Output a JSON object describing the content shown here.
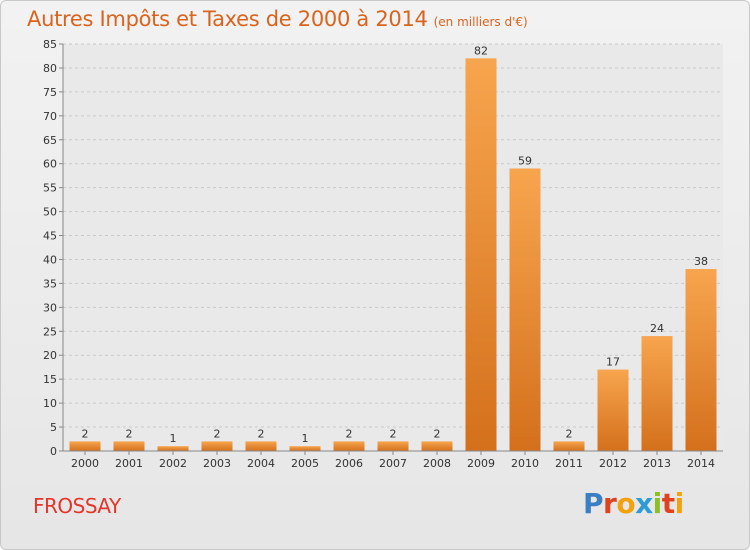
{
  "chart_data": {
    "type": "bar",
    "title": "Autres Impôts et Taxes de 2000 à 2014",
    "subtitle": "(en milliers d'€)",
    "categories": [
      "2000",
      "2001",
      "2002",
      "2003",
      "2004",
      "2005",
      "2006",
      "2007",
      "2008",
      "2009",
      "2010",
      "2011",
      "2012",
      "2013",
      "2014"
    ],
    "values": [
      2,
      2,
      1,
      2,
      2,
      1,
      2,
      2,
      2,
      82,
      59,
      2,
      17,
      24,
      38
    ],
    "ylim": [
      0,
      85
    ],
    "yticks": [
      0,
      5,
      10,
      15,
      20,
      25,
      30,
      35,
      40,
      45,
      50,
      55,
      60,
      65,
      70,
      75,
      80,
      85
    ],
    "grid": true,
    "legend": "none",
    "colors": {
      "bar_light": "#f7a54e",
      "bar_dark": "#d4701c",
      "text_accent": "#d9641e"
    }
  },
  "commune": "FROSSAY",
  "logo": {
    "letters": [
      {
        "char": "P",
        "color": "#3a7fc4"
      },
      {
        "char": "r",
        "color": "#e0421f"
      },
      {
        "char": "o",
        "color": "#f2a20c"
      },
      {
        "char": "x",
        "color": "#2d9bd6"
      },
      {
        "char": "i",
        "color": "#8cbf26"
      },
      {
        "char": "t",
        "color": "#e0421f"
      },
      {
        "char": "i",
        "color": "#f2a20c"
      }
    ]
  }
}
